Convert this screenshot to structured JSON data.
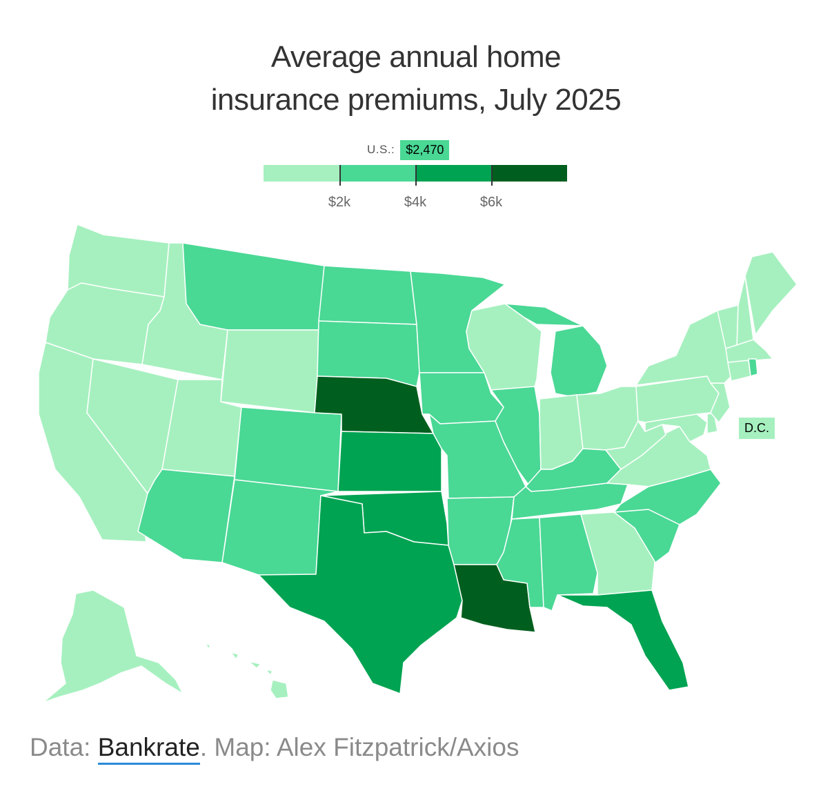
{
  "title": {
    "line1": "Average annual home",
    "line2": "insurance premiums, July 2025"
  },
  "legend": {
    "us_label": "U.S.:",
    "us_value": "$2,470",
    "bins": [
      {
        "color": "#a6f0bf"
      },
      {
        "color": "#4ad895"
      },
      {
        "color": "#4ad895"
      },
      {
        "color": "#00a352"
      },
      {
        "color": "#005f1e"
      }
    ],
    "ticks": [
      {
        "label": "$2k",
        "fraction": 0.25
      },
      {
        "label": "$4k",
        "fraction": 0.5
      },
      {
        "label": "$6k",
        "fraction": 0.75
      }
    ]
  },
  "colors": {
    "lightest": "#a6f0bf",
    "light": "#4ad895",
    "medium": "#00a352",
    "dark": "#005f1e"
  },
  "states": {
    "WA": "lightest",
    "OR": "lightest",
    "CA": "lightest",
    "NV": "lightest",
    "ID": "lightest",
    "UT": "lightest",
    "WY": "lightest",
    "AK": "lightest",
    "HI": "lightest",
    "MT": "light",
    "ND": "light",
    "SD": "light",
    "MN": "light",
    "IA": "light",
    "CO": "light",
    "AZ": "light",
    "NM": "light",
    "MO": "light",
    "AR": "light",
    "IL": "light",
    "MI": "light",
    "KY": "light",
    "TN": "light",
    "MS": "light",
    "AL": "light",
    "SC": "light",
    "NC": "light",
    "RI": "light",
    "NE": "dark",
    "LA": "dark",
    "KS": "medium",
    "OK": "medium",
    "TX": "medium",
    "FL": "medium",
    "WI": "lightest",
    "IN": "lightest",
    "OH": "lightest",
    "GA": "lightest",
    "WV": "lightest",
    "VA": "lightest",
    "PA": "lightest",
    "NY": "lightest",
    "VT": "lightest",
    "NH": "lightest",
    "ME": "lightest",
    "MA": "lightest",
    "CT": "lightest",
    "NJ": "lightest",
    "DE": "lightest",
    "MD": "lightest",
    "DC": "lightest"
  },
  "dc_label": "D.C.",
  "source": {
    "prefix": "Data: ",
    "link": "Bankrate",
    "suffix": ". Map: Alex Fitzpatrick/Axios"
  }
}
